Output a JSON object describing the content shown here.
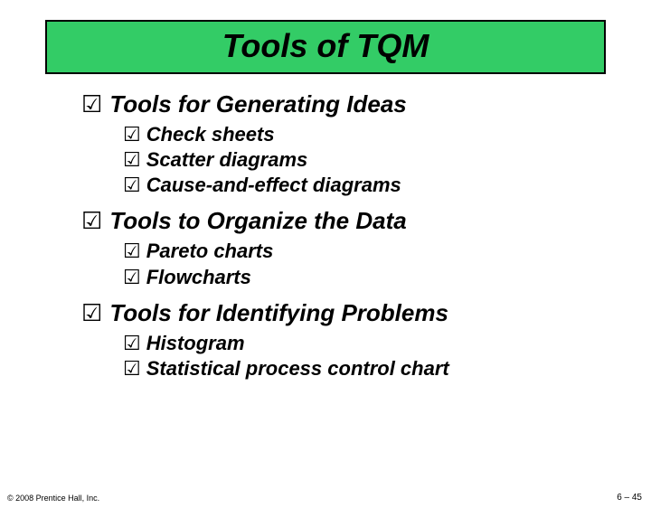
{
  "title": "Tools of TQM",
  "title_bg": "#33cc66",
  "title_border": "#000000",
  "bullet_glyph": "☑",
  "sections": [
    {
      "heading": "Tools for Generating Ideas",
      "items": [
        "Check sheets",
        "Scatter diagrams",
        "Cause-and-effect diagrams"
      ]
    },
    {
      "heading": "Tools to Organize the Data",
      "items": [
        "Pareto charts",
        "Flowcharts"
      ]
    },
    {
      "heading": "Tools for Identifying Problems",
      "items": [
        "Histogram",
        "Statistical process control chart"
      ]
    }
  ],
  "footer_left": "© 2008 Prentice Hall, Inc.",
  "footer_right": "6 – 45",
  "heading_fontsize": 26,
  "item_fontsize": 22,
  "title_fontsize": 36,
  "text_color": "#000000",
  "background_color": "#ffffff"
}
